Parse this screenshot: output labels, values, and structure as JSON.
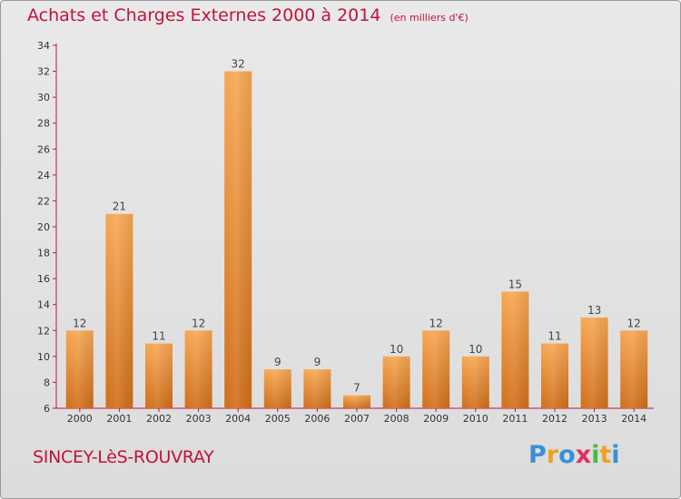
{
  "header": {
    "title": "Achats et Charges Externes 2000 à 2014",
    "unit": "(en milliers d'€)"
  },
  "footer": {
    "city": "SINCEY-LèS-ROUVRAY",
    "logo": {
      "letters": [
        "P",
        "r",
        "o",
        "x",
        "i",
        "t",
        "i"
      ],
      "colors": [
        "#3a8fd8",
        "#f0a020",
        "#3a8fd8",
        "#e03060",
        "#4cb848",
        "#f0a020",
        "#3a8fd8"
      ]
    }
  },
  "colors": {
    "accent": "#c0143c",
    "bar": "#e88a2c",
    "axis": "#c0143c"
  },
  "chart_data": {
    "type": "bar",
    "categories": [
      "2000",
      "2001",
      "2002",
      "2003",
      "2004",
      "2005",
      "2006",
      "2007",
      "2008",
      "2009",
      "2010",
      "2011",
      "2012",
      "2013",
      "2014"
    ],
    "values": [
      12,
      21,
      11,
      12,
      32,
      9,
      9,
      7,
      10,
      12,
      10,
      15,
      11,
      13,
      12
    ],
    "ylim": [
      6,
      34
    ],
    "yticks": [
      6,
      8,
      10,
      12,
      14,
      16,
      18,
      20,
      22,
      24,
      26,
      28,
      30,
      32,
      34
    ],
    "grid": false,
    "data_labels": true
  }
}
